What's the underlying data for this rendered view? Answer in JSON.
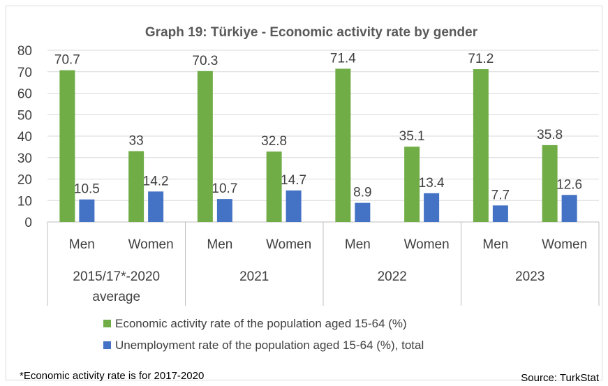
{
  "chart_data": {
    "type": "bar",
    "title": "Graph 19: Türkiye -  Economic activity rate by gender",
    "ylim": [
      0,
      80
    ],
    "yticks": [
      0,
      10,
      20,
      30,
      40,
      50,
      60,
      70,
      80
    ],
    "grid": true,
    "legend_position": "bottom",
    "groups": [
      {
        "label_lines": [
          "2015/17*-2020",
          "average"
        ],
        "subcategories": [
          "Men",
          "Women"
        ]
      },
      {
        "label_lines": [
          "2021"
        ],
        "subcategories": [
          "Men",
          "Women"
        ]
      },
      {
        "label_lines": [
          "2022"
        ],
        "subcategories": [
          "Men",
          "Women"
        ]
      },
      {
        "label_lines": [
          "2023"
        ],
        "subcategories": [
          "Men",
          "Women"
        ]
      }
    ],
    "categories": [
      "Men",
      "Women",
      "Men",
      "Women",
      "Men",
      "Women",
      "Men",
      "Women"
    ],
    "series": [
      {
        "name": "Economic activity rate of the population aged 15-64 (%)",
        "color": "#70ad47",
        "values": [
          70.7,
          33,
          70.3,
          32.8,
          71.4,
          35.1,
          71.2,
          35.8
        ]
      },
      {
        "name": "Unemployment rate of the population aged 15-64 (%), total",
        "color": "#4472c4",
        "values": [
          10.5,
          14.2,
          10.7,
          14.7,
          8.9,
          13.4,
          7.7,
          12.6
        ]
      }
    ]
  },
  "footnote": "*Economic activity rate is for 2017-2020",
  "source": "Source: TurkStat"
}
